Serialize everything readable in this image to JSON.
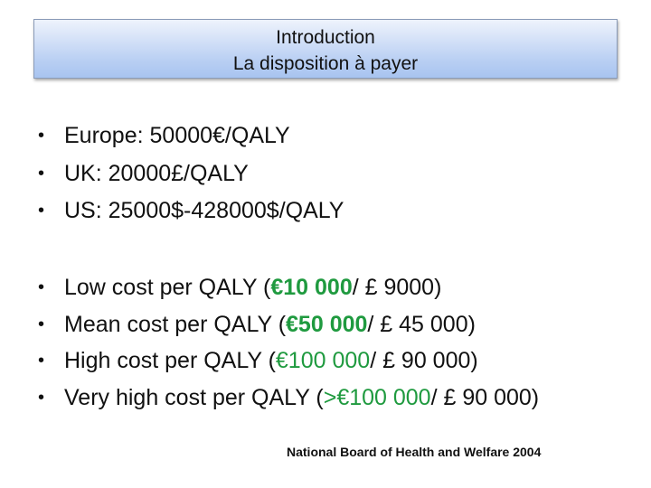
{
  "title": {
    "line1": "Introduction",
    "line2": "La disposition à payer"
  },
  "list1": [
    "Europe: 50000€/QALY",
    "UK: 20000£/QALY",
    "US: 25000$-428000$/QALY"
  ],
  "list2": [
    {
      "prefix": "Low cost per QALY (",
      "eur": "€10 000",
      "eur_bold": true,
      "suffix": "/ £ 9000)"
    },
    {
      "prefix": "Mean cost per QALY (",
      "eur": "€50 000",
      "eur_bold": true,
      "suffix": "/ £ 45 000)"
    },
    {
      "prefix": "High cost per QALY (",
      "eur": "€100 000",
      "eur_bold": false,
      "suffix": "/ £ 90 000)"
    },
    {
      "prefix": "Very high cost per QALY (",
      "eur": ">€100 000",
      "eur_bold": false,
      "suffix": "/ £ 90 000)"
    }
  ],
  "bullet": "•",
  "source": "National Board of Health and Welfare 2004",
  "colors": {
    "accent_green": "#1f9a3f",
    "title_fill": "#b9cff3"
  }
}
